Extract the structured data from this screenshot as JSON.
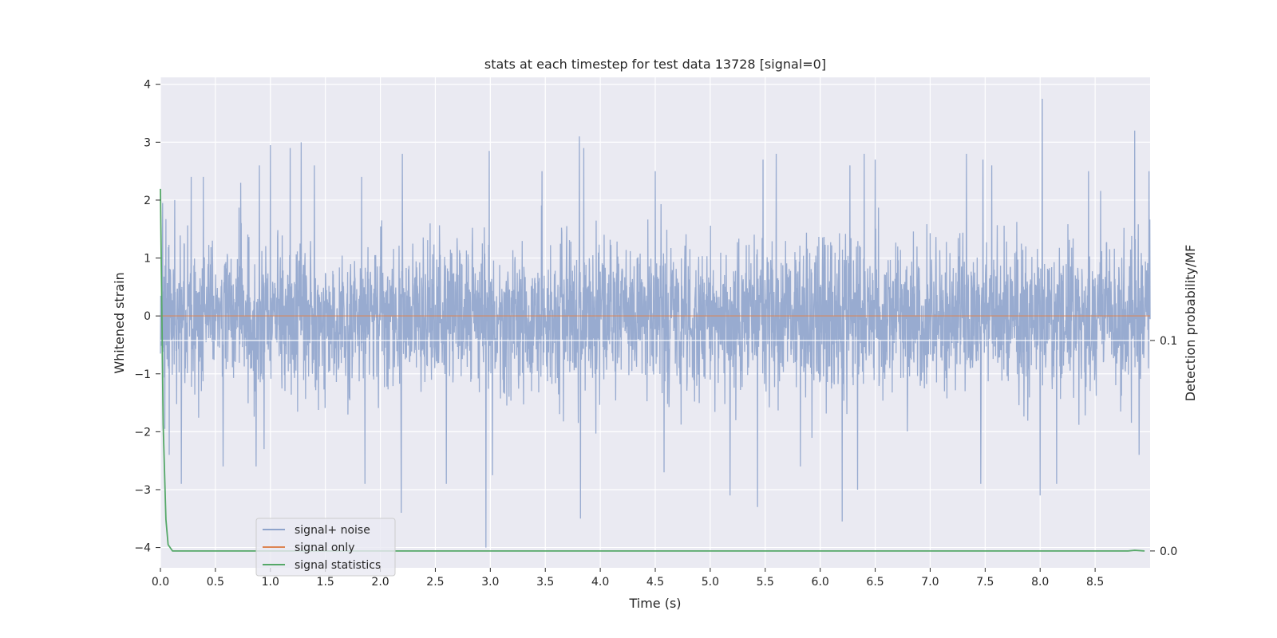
{
  "chart_data": {
    "type": "line",
    "title": "stats at each timestep for test data 13728 [signal=0]",
    "xlabel": "Time (s)",
    "ylabel": "Whitened strain",
    "ylabel_right": "Detection probability/MF",
    "xlim": [
      0,
      9.0
    ],
    "ylim": [
      -4.35,
      4.12
    ],
    "ylim_right": [
      -0.008,
      0.225
    ],
    "x_ticks": [
      0.0,
      0.5,
      1.0,
      1.5,
      2.0,
      2.5,
      3.0,
      3.5,
      4.0,
      4.5,
      5.0,
      5.5,
      6.0,
      6.5,
      7.0,
      7.5,
      8.0,
      8.5
    ],
    "x_tick_labels": [
      "0.0",
      "0.5",
      "1.0",
      "1.5",
      "2.0",
      "2.5",
      "3.0",
      "3.5",
      "4.0",
      "4.5",
      "5.0",
      "5.5",
      "6.0",
      "6.5",
      "7.0",
      "7.5",
      "8.0",
      "8.5"
    ],
    "y_ticks": [
      4,
      3,
      2,
      1,
      0,
      -1,
      -2,
      -3,
      -4
    ],
    "y_tick_labels": [
      "4",
      "3",
      "2",
      "1",
      "0",
      "−1",
      "−2",
      "−3",
      "−4"
    ],
    "y_ticks_right": [
      0.1,
      0.0
    ],
    "y_tick_labels_right": [
      "0.1",
      "0.0"
    ],
    "grid": true,
    "legend_position": "lower-left",
    "series": [
      {
        "name": "signal+ noise",
        "axis": "left",
        "color": "#8fa4cc",
        "sample_rate": 400,
        "noise_std": 0.62,
        "peaks": [
          {
            "t": 0.02,
            "v": 1.95
          },
          {
            "t": 0.04,
            "v": -1.95
          },
          {
            "t": 0.08,
            "v": -2.4
          },
          {
            "t": 0.13,
            "v": 2.0
          },
          {
            "t": 0.19,
            "v": -2.9
          },
          {
            "t": 0.28,
            "v": 2.4
          },
          {
            "t": 0.39,
            "v": 2.4
          },
          {
            "t": 0.57,
            "v": -2.6
          },
          {
            "t": 0.73,
            "v": 2.3
          },
          {
            "t": 0.87,
            "v": -2.6
          },
          {
            "t": 0.9,
            "v": 2.6
          },
          {
            "t": 1.0,
            "v": 2.95
          },
          {
            "t": 1.18,
            "v": 2.9
          },
          {
            "t": 1.28,
            "v": 3.0
          },
          {
            "t": 1.4,
            "v": 2.6
          },
          {
            "t": 1.83,
            "v": 2.4
          },
          {
            "t": 1.86,
            "v": -2.9
          },
          {
            "t": 2.19,
            "v": -3.4
          },
          {
            "t": 2.2,
            "v": 2.8
          },
          {
            "t": 2.6,
            "v": -2.9
          },
          {
            "t": 2.96,
            "v": -4.0
          },
          {
            "t": 2.99,
            "v": 2.85
          },
          {
            "t": 3.02,
            "v": -2.75
          },
          {
            "t": 3.47,
            "v": 2.5
          },
          {
            "t": 3.81,
            "v": 3.1
          },
          {
            "t": 3.82,
            "v": -3.5
          },
          {
            "t": 3.85,
            "v": 2.9
          },
          {
            "t": 4.5,
            "v": 2.5
          },
          {
            "t": 4.58,
            "v": -2.7
          },
          {
            "t": 5.18,
            "v": -3.1
          },
          {
            "t": 5.43,
            "v": -3.3
          },
          {
            "t": 5.48,
            "v": 2.7
          },
          {
            "t": 5.6,
            "v": 2.8
          },
          {
            "t": 5.82,
            "v": -2.6
          },
          {
            "t": 6.2,
            "v": -3.55
          },
          {
            "t": 6.27,
            "v": 2.6
          },
          {
            "t": 6.4,
            "v": 2.8
          },
          {
            "t": 6.34,
            "v": -3.0
          },
          {
            "t": 6.5,
            "v": 2.7
          },
          {
            "t": 7.33,
            "v": 2.8
          },
          {
            "t": 7.48,
            "v": 2.7
          },
          {
            "t": 7.46,
            "v": -2.9
          },
          {
            "t": 7.56,
            "v": 2.6
          },
          {
            "t": 8.0,
            "v": -3.1
          },
          {
            "t": 8.02,
            "v": 3.75
          },
          {
            "t": 8.15,
            "v": -2.9
          },
          {
            "t": 8.44,
            "v": 2.5
          },
          {
            "t": 8.86,
            "v": 3.2
          },
          {
            "t": 8.99,
            "v": 2.5
          },
          {
            "t": 8.9,
            "v": -2.4
          }
        ]
      },
      {
        "name": "signal only",
        "axis": "left",
        "color": "#dd8452",
        "x": [
          0.0,
          9.0
        ],
        "y": [
          0.0,
          0.0
        ]
      },
      {
        "name": "signal statistics",
        "axis": "right",
        "color": "#55a868",
        "x": [
          0.0,
          0.025,
          0.05,
          0.07,
          0.11,
          0.5,
          1.0,
          2.0,
          3.0,
          4.0,
          5.0,
          6.0,
          7.0,
          8.0,
          8.7,
          8.8,
          8.86,
          8.95
        ],
        "y": [
          0.172,
          0.06,
          0.015,
          0.003,
          0.0,
          0.0,
          0.0,
          0.0,
          0.0,
          0.0,
          0.0,
          0.0,
          0.0,
          0.0,
          0.0,
          0.0,
          0.0003,
          0.0
        ]
      }
    ]
  }
}
